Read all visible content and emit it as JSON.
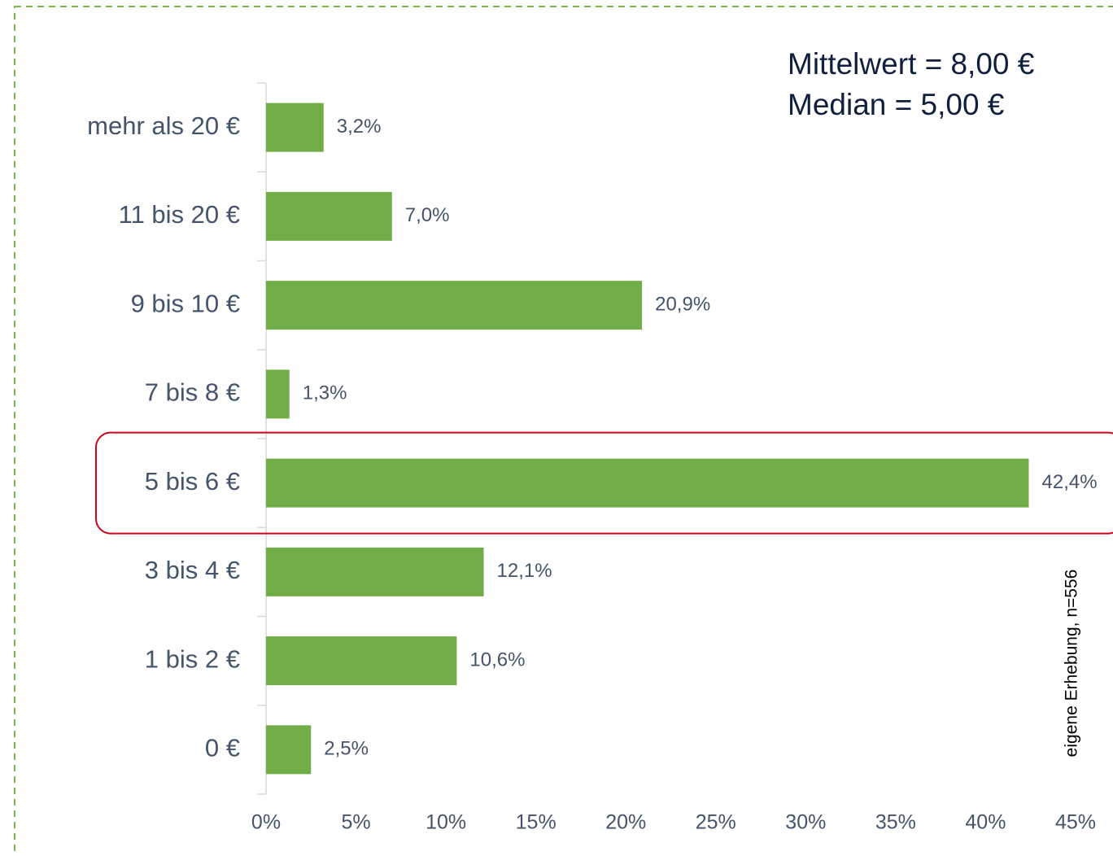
{
  "chart_data": {
    "type": "barh",
    "categories": [
      "mehr als 20 €",
      "11 bis 20 €",
      "9 bis 10 €",
      "7 bis 8 €",
      "5 bis 6 €",
      "3 bis 4 €",
      "1 bis 2 €",
      "0 €"
    ],
    "values": [
      3.2,
      7.0,
      20.9,
      1.3,
      42.4,
      12.1,
      10.6,
      2.5
    ],
    "value_labels": [
      "3,2%",
      "7,0%",
      "20,9%",
      "1,3%",
      "42,4%",
      "12,1%",
      "10,6%",
      "2,5%"
    ],
    "color": "#70ad47",
    "xlim": [
      0,
      45
    ],
    "xticks": [
      {
        "value": 0,
        "label": "0%"
      },
      {
        "value": 5,
        "label": "5%"
      },
      {
        "value": 10,
        "label": "10%"
      },
      {
        "value": 15,
        "label": "15%"
      },
      {
        "value": 20,
        "label": "20%"
      },
      {
        "value": 25,
        "label": "25%"
      },
      {
        "value": 30,
        "label": "30%"
      },
      {
        "value": 35,
        "label": "35%"
      },
      {
        "value": 40,
        "label": "40%"
      },
      {
        "value": 45,
        "label": "45%"
      }
    ],
    "highlight_category": "5 bis 6 €",
    "annotations": [
      "Mittelwert = 8,00 €",
      "Median = 5,00 €"
    ],
    "source": "eigene Erhebung, n=556"
  }
}
